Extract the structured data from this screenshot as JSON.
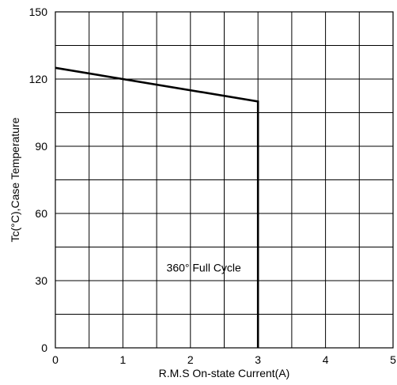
{
  "chart_data": {
    "type": "line",
    "title": "",
    "xlabel": "R.M.S On-state Current(A)",
    "ylabel": "Tc(°C),Case Temperature",
    "xlim": [
      0,
      5
    ],
    "ylim": [
      0,
      150
    ],
    "x_ticks": [
      0,
      1,
      2,
      3,
      4,
      5
    ],
    "y_ticks": [
      0,
      30,
      60,
      90,
      120,
      150
    ],
    "x_tick_labels": [
      "0",
      "1",
      "2",
      "3",
      "4",
      "5"
    ],
    "y_tick_labels": [
      "0",
      "30",
      "60",
      "90",
      "120",
      "150"
    ],
    "grid": true,
    "series": [
      {
        "x": [
          0,
          3,
          3
        ],
        "y": [
          125,
          110,
          0
        ],
        "color": "#000000"
      }
    ],
    "annotations": [
      {
        "text": "360° Full Cycle",
        "x": 2.75,
        "y": 34
      }
    ]
  }
}
